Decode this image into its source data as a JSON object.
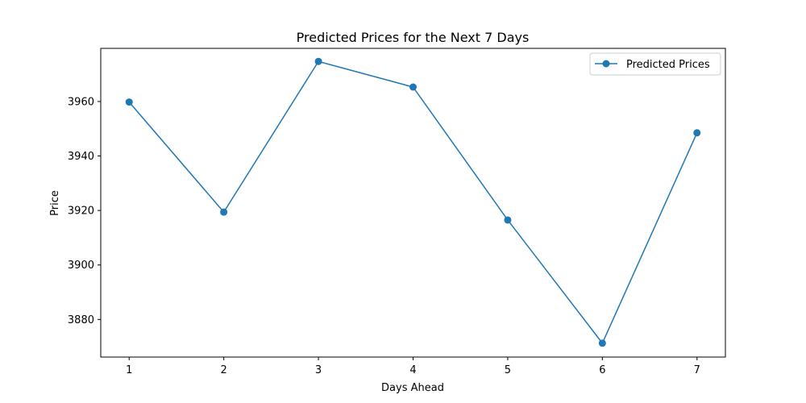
{
  "chart_data": {
    "type": "line",
    "title": "Predicted Prices for the Next 7 Days",
    "xlabel": "Days Ahead",
    "ylabel": "Price",
    "x": [
      1,
      2,
      3,
      4,
      5,
      6,
      7
    ],
    "xticks": [
      "1",
      "2",
      "3",
      "4",
      "5",
      "6",
      "7"
    ],
    "yticks": [
      3880,
      3900,
      3920,
      3940,
      3960
    ],
    "xlim": [
      0.7,
      7.3
    ],
    "ylim": [
      3866.2,
      3979.5
    ],
    "series": [
      {
        "name": "Predicted Prices",
        "color": "#1f77b4",
        "marker": "circle",
        "values": [
          3959.8,
          3919.4,
          3974.7,
          3965.3,
          3916.5,
          3871.3,
          3948.5
        ]
      }
    ],
    "legend": {
      "placement": "top-right"
    },
    "grid": false
  }
}
